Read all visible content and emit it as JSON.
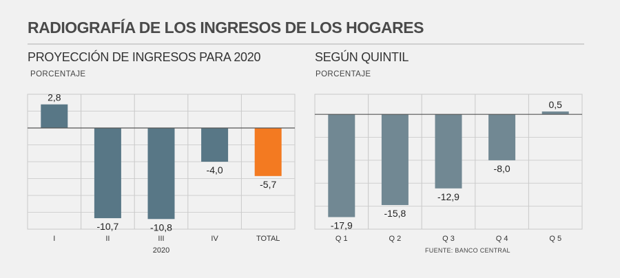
{
  "title": "RADIOGRAFÍA DE LOS INGRESOS DE LOS HOGARES",
  "source": "FUENTE: BANCO CENTRAL",
  "colors": {
    "bar_left": "#587786",
    "bar_highlight": "#f37a21",
    "bar_right": "#718893",
    "background": "#f1f1f1"
  },
  "chart_data": [
    {
      "type": "bar",
      "title": "PROYECCIÓN DE INGRESOS PARA 2020",
      "ylabel": "PORCENTAJE",
      "xlabel": "2020",
      "categories": [
        "I",
        "II",
        "III",
        "IV",
        "TOTAL"
      ],
      "values": [
        2.8,
        -10.7,
        -10.8,
        -4.0,
        -5.7
      ],
      "value_labels": [
        "2,8",
        "-10,7",
        "-10,8",
        "-4,0",
        "-5,7"
      ],
      "highlight": "TOTAL",
      "ylim": [
        -12,
        4
      ],
      "grid": true
    },
    {
      "type": "bar",
      "title": "SEGÚN QUINTIL",
      "ylabel": "PORCENTAJE",
      "categories": [
        "Q 1",
        "Q 2",
        "Q 3",
        "Q 4",
        "Q 5"
      ],
      "values": [
        -17.9,
        -15.8,
        -12.9,
        -8.0,
        0.5
      ],
      "value_labels": [
        "-17,9",
        "-15,8",
        "-12,9",
        "-8,0",
        "0,5"
      ],
      "ylim": [
        -20,
        3.5
      ],
      "grid": true
    }
  ]
}
